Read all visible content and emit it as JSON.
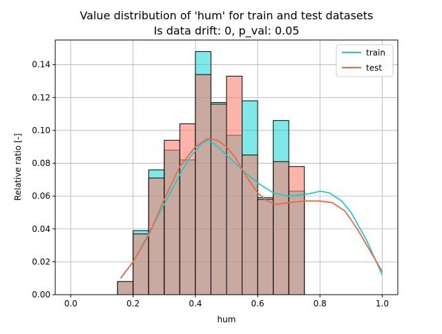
{
  "chart_data": {
    "type": "histogram_kde",
    "title_line1": "Value distribution of 'hum' for train and test datasets",
    "title_line2": "Is data drift: 0, p_val: 0.05",
    "xlabel": "hum",
    "ylabel": "Relative ratio [-]",
    "xlim": [
      -0.05,
      1.05
    ],
    "ylim": [
      0,
      0.155
    ],
    "xticks": [
      0.0,
      0.2,
      0.4,
      0.6,
      0.8,
      1.0
    ],
    "xtick_labels": [
      "0.0",
      "0.2",
      "0.4",
      "0.6",
      "0.8",
      "1.0"
    ],
    "yticks": [
      0.0,
      0.02,
      0.04,
      0.06,
      0.08,
      0.1,
      0.12,
      0.14
    ],
    "ytick_labels": [
      "0.00",
      "0.02",
      "0.04",
      "0.06",
      "0.08",
      "0.10",
      "0.12",
      "0.14"
    ],
    "grid": true,
    "legend_position": "top-right",
    "bins": [
      {
        "x0": 0.15,
        "x1": 0.2,
        "train": 0.008,
        "test": 0.008
      },
      {
        "x0": 0.2,
        "x1": 0.25,
        "train": 0.039,
        "test": 0.037
      },
      {
        "x0": 0.25,
        "x1": 0.3,
        "train": 0.076,
        "test": 0.071
      },
      {
        "x0": 0.3,
        "x1": 0.35,
        "train": 0.088,
        "test": 0.094
      },
      {
        "x0": 0.35,
        "x1": 0.4,
        "train": 0.082,
        "test": 0.104
      },
      {
        "x0": 0.4,
        "x1": 0.45,
        "train": 0.148,
        "test": 0.134
      },
      {
        "x0": 0.45,
        "x1": 0.5,
        "train": 0.117,
        "test": 0.116
      },
      {
        "x0": 0.5,
        "x1": 0.55,
        "train": 0.097,
        "test": 0.133
      },
      {
        "x0": 0.55,
        "x1": 0.6,
        "train": 0.118,
        "test": 0.085
      },
      {
        "x0": 0.6,
        "x1": 0.65,
        "train": 0.059,
        "test": 0.058
      },
      {
        "x0": 0.65,
        "x1": 0.7,
        "train": 0.106,
        "test": 0.081
      },
      {
        "x0": 0.7,
        "x1": 0.75,
        "train": 0.063,
        "test": 0.078
      }
    ],
    "series": [
      {
        "name": "train",
        "color": "#1ecbcb",
        "bar_color": "#00d2d2",
        "kde": [
          [
            0.16,
            0.01
          ],
          [
            0.2,
            0.02
          ],
          [
            0.25,
            0.037
          ],
          [
            0.3,
            0.055
          ],
          [
            0.35,
            0.073
          ],
          [
            0.38,
            0.083
          ],
          [
            0.42,
            0.092
          ],
          [
            0.44,
            0.094
          ],
          [
            0.46,
            0.092
          ],
          [
            0.5,
            0.085
          ],
          [
            0.55,
            0.076
          ],
          [
            0.6,
            0.068
          ],
          [
            0.65,
            0.062
          ],
          [
            0.7,
            0.06
          ],
          [
            0.75,
            0.061
          ],
          [
            0.78,
            0.062
          ],
          [
            0.8,
            0.063
          ],
          [
            0.83,
            0.062
          ],
          [
            0.87,
            0.057
          ],
          [
            0.9,
            0.05
          ],
          [
            0.95,
            0.033
          ],
          [
            1.0,
            0.012
          ]
        ]
      },
      {
        "name": "test",
        "color": "#ee6644",
        "bar_color": "#fa8072",
        "kde": [
          [
            0.16,
            0.01
          ],
          [
            0.2,
            0.02
          ],
          [
            0.25,
            0.036
          ],
          [
            0.3,
            0.058
          ],
          [
            0.35,
            0.078
          ],
          [
            0.4,
            0.09
          ],
          [
            0.44,
            0.095
          ],
          [
            0.47,
            0.094
          ],
          [
            0.5,
            0.09
          ],
          [
            0.53,
            0.083
          ],
          [
            0.57,
            0.07
          ],
          [
            0.6,
            0.062
          ],
          [
            0.63,
            0.057
          ],
          [
            0.66,
            0.055
          ],
          [
            0.7,
            0.056
          ],
          [
            0.75,
            0.057
          ],
          [
            0.8,
            0.057
          ],
          [
            0.84,
            0.056
          ],
          [
            0.88,
            0.051
          ],
          [
            0.92,
            0.04
          ],
          [
            0.96,
            0.027
          ],
          [
            1.0,
            0.014
          ]
        ]
      }
    ]
  }
}
